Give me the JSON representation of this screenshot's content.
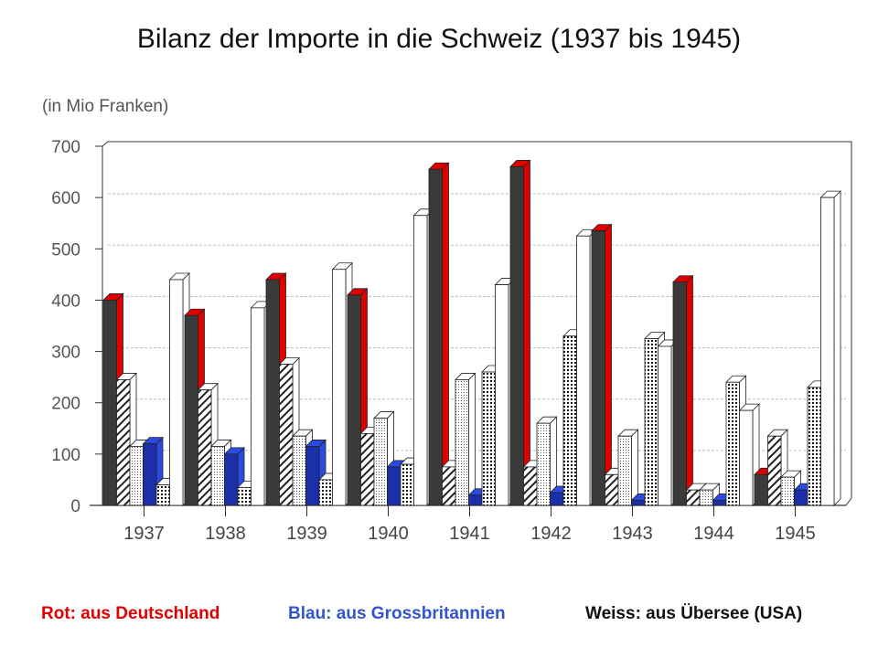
{
  "title": "Bilanz der Importe in die Schweiz  (1937 bis 1945)",
  "chart_data": {
    "type": "bar",
    "title": "Bilanz der Importe in die Schweiz  (1937 bis 1945)",
    "ylabel": "(in Mio Franken)",
    "xlabel": "",
    "ylim": [
      0,
      700
    ],
    "yticks": [
      "0",
      "100",
      "200",
      "300",
      "400",
      "500",
      "600",
      "700"
    ],
    "categories": [
      "1937",
      "1938",
      "1939",
      "1940",
      "1941",
      "1942",
      "1943",
      "1944",
      "1945"
    ],
    "grid": true,
    "series": [
      {
        "name": "Rot:  aus Deutschland",
        "style": "red",
        "values": [
          400,
          370,
          440,
          410,
          655,
          660,
          535,
          435,
          60
        ]
      },
      {
        "name": "",
        "style": "hatch",
        "values": [
          245,
          225,
          275,
          140,
          75,
          75,
          60,
          30,
          135
        ]
      },
      {
        "name": "",
        "style": "dots",
        "values": [
          115,
          115,
          135,
          170,
          245,
          160,
          135,
          30,
          55
        ]
      },
      {
        "name": "Blau:  aus Grossbritannien",
        "style": "blue",
        "values": [
          120,
          100,
          115,
          75,
          20,
          25,
          10,
          10,
          30
        ]
      },
      {
        "name": "",
        "style": "grid",
        "values": [
          40,
          35,
          50,
          80,
          260,
          330,
          325,
          240,
          230
        ]
      },
      {
        "name": "Weiss:  aus Übersee (USA)",
        "style": "white",
        "values": [
          440,
          385,
          460,
          565,
          430,
          525,
          310,
          185,
          600
        ]
      }
    ],
    "legend": [
      "Rot:  aus Deutschland",
      "Blau:  aus Grossbritannien",
      "Weiss:  aus Übersee (USA)"
    ],
    "legend_position": "bottom"
  },
  "colors": {
    "red": "#e00000",
    "dark": "#3a3a3a",
    "blue": "#1a2fa8",
    "legend_blue": "#3355cc"
  }
}
